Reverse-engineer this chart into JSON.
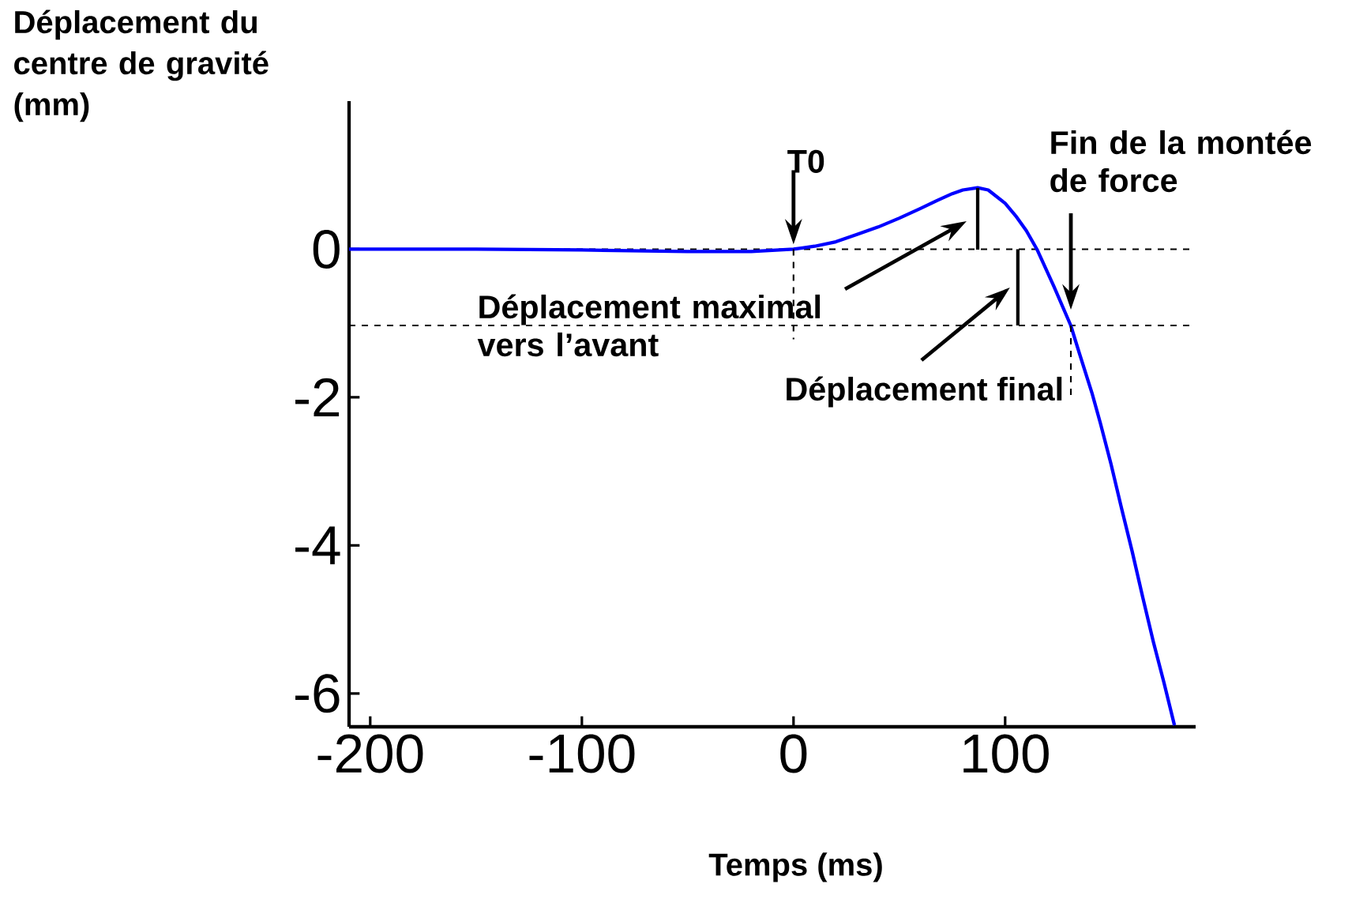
{
  "chart_data": {
    "type": "line",
    "xlabel": "Temps (ms)",
    "ylabel": "Déplacement du centre de gravité (mm)",
    "series": [
      {
        "color": "#0000ff",
        "x": [
          -210,
          -150,
          -100,
          -50,
          -20,
          0,
          10,
          20,
          30,
          40,
          50,
          60,
          68,
          75,
          80,
          87,
          92,
          100,
          105,
          110,
          115,
          123,
          131,
          135,
          141,
          145,
          150,
          155,
          160,
          165,
          170,
          175,
          180
        ],
        "values": [
          0,
          0,
          -0.01,
          -0.03,
          -0.03,
          0,
          0.04,
          0.1,
          0.2,
          0.3,
          0.42,
          0.55,
          0.66,
          0.75,
          0.8,
          0.83,
          0.8,
          0.62,
          0.45,
          0.25,
          0,
          -0.5,
          -1.03,
          -1.4,
          -1.94,
          -2.35,
          -2.9,
          -3.5,
          -4.08,
          -4.7,
          -5.3,
          -5.85,
          -6.43
        ]
      },
      {
        "color": "#000000",
        "x": [
          106,
          106
        ],
        "values": [
          0,
          -1.03
        ]
      }
    ],
    "marker": "none",
    "line_style": "solid",
    "xlim": [
      -210,
      190
    ],
    "ylim": [
      -6.45,
      2
    ],
    "xticks": [
      -200,
      -100,
      0,
      100
    ],
    "yticks": [
      -6,
      -4,
      -2,
      0
    ],
    "ref_lines": [
      {
        "axis": "y",
        "value": 0,
        "line_style": "dashed",
        "color": "#000000"
      },
      {
        "axis": "y",
        "value": -1.03,
        "line_style": "dashed",
        "color": "#000000"
      }
    ],
    "annotations": [
      {
        "text": "T0",
        "x": 0,
        "y": 0
      },
      "Déplacement maximal vers l’avant",
      {
        "text": "Déplacement final",
        "x": 106,
        "y": -1.03
      },
      "Fin de la montée de force"
    ]
  }
}
